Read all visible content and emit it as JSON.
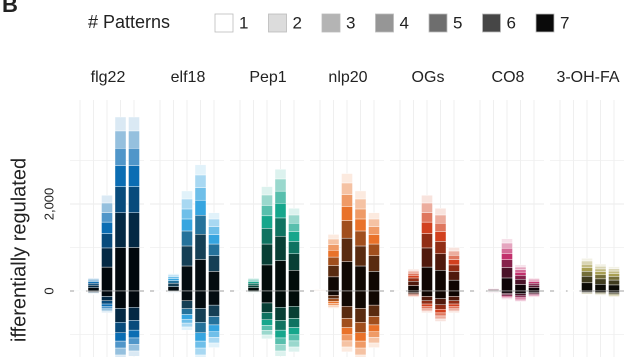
{
  "chart_data": {
    "type": "faceted_stacked_bar",
    "panel_label": "B",
    "ylabel": "ifferentially regulated",
    "legend_title": "# Patterns",
    "legend": {
      "labels": [
        "1",
        "2",
        "3",
        "4",
        "5",
        "6",
        "7"
      ],
      "colors": [
        "#ffffff",
        "#dcdcdc",
        "#b4b4b4",
        "#969696",
        "#6e6e6e",
        "#464646",
        "#0a0a0a"
      ]
    },
    "ylim": [
      -1500,
      4200
    ],
    "yticks": [
      0,
      {
        "value": 2000,
        "label": "2,000"
      }
    ],
    "minor_gridlines": [
      -1000,
      1000,
      3000
    ],
    "facets": [
      {
        "name": "flg22",
        "color": "#0b6db3",
        "bars": [
          {
            "up": [
              2,
              2,
              2,
              2,
              3,
              4,
              5
            ],
            "down": [
              -1,
              -1,
              -1,
              -1,
              -1,
              -2,
              -3
            ]
          },
          {
            "up": [
              24,
              30,
              30,
              36,
              45,
              60,
              75
            ],
            "down": [
              -6,
              -8,
              -8,
              -10,
              -12,
              -16,
              -20
            ]
          },
          {
            "up": [
              176,
              220,
              220,
              264,
              330,
              440,
              550
            ],
            "down": [
              -40,
              -50,
              -50,
              -60,
              -75,
              -100,
              -125
            ]
          },
          {
            "up": [
              320,
              400,
              400,
              480,
              600,
              800,
              1000
            ],
            "down": [
              -128,
              -160,
              -160,
              -192,
              -240,
              -320,
              -400
            ]
          },
          {
            "up": [
              320,
              400,
              400,
              480,
              600,
              800,
              1000
            ],
            "down": [
              -120,
              -150,
              -150,
              -180,
              -225,
              -300,
              -375
            ]
          }
        ]
      },
      {
        "name": "elf18",
        "color": "#36a5e0",
        "bars": [
          {
            "up": [
              2,
              2,
              2,
              2,
              3,
              4,
              5
            ],
            "down": [
              -1,
              -1,
              -1,
              -1,
              -1,
              -2,
              -3
            ]
          },
          {
            "up": [
              32,
              40,
              40,
              48,
              60,
              80,
              100
            ],
            "down": [
              -3,
              -5,
              -5,
              -6,
              -8,
              -10,
              -13
            ]
          },
          {
            "up": [
              184,
              230,
              230,
              276,
              345,
              460,
              575
            ],
            "down": [
              -72,
              -90,
              -90,
              -108,
              -135,
              -180,
              -225
            ]
          },
          {
            "up": [
              232,
              290,
              290,
              348,
              435,
              580,
              725
            ],
            "down": [
              -128,
              -160,
              -160,
              -192,
              -240,
              -320,
              -400
            ]
          },
          {
            "up": [
              144,
              180,
              180,
              216,
              270,
              360,
              450
            ],
            "down": [
              -104,
              -130,
              -130,
              -156,
              -195,
              -260,
              -325
            ]
          }
        ]
      },
      {
        "name": "Pep1",
        "color": "#16a68c",
        "bars": [
          {
            "up": [
              2,
              2,
              2,
              2,
              3,
              4,
              5
            ],
            "down": [
              -1,
              -1,
              -1,
              -1,
              -1,
              -2,
              -3
            ]
          },
          {
            "up": [
              24,
              30,
              30,
              36,
              45,
              60,
              75
            ],
            "down": [
              -5,
              -6,
              -6,
              -7,
              -9,
              -12,
              -15
            ]
          },
          {
            "up": [
              192,
              240,
              240,
              288,
              360,
              480,
              600
            ],
            "down": [
              -88,
              -110,
              -110,
              -132,
              -165,
              -220,
              -275
            ]
          },
          {
            "up": [
              224,
              280,
              280,
              336,
              420,
              560,
              700
            ],
            "down": [
              -120,
              -150,
              -150,
              -180,
              -225,
              -300,
              -375
            ]
          },
          {
            "up": [
              152,
              190,
              190,
              228,
              285,
              380,
              475
            ],
            "down": [
              -112,
              -140,
              -140,
              -168,
              -210,
              -280,
              -350
            ]
          }
        ]
      },
      {
        "name": "nlp20",
        "color": "#e9722a",
        "bars": [
          {
            "up": [
              3,
              4,
              4,
              5,
              6,
              8,
              10
            ],
            "down": [
              -1,
              -1,
              -1,
              -1,
              -1,
              -2,
              -3
            ]
          },
          {
            "up": [
              104,
              130,
              130,
              156,
              195,
              260,
              325
            ],
            "down": [
              -32,
              -40,
              -40,
              -48,
              -60,
              -80,
              -100
            ]
          },
          {
            "up": [
              216,
              270,
              270,
              324,
              405,
              540,
              675
            ],
            "down": [
              -112,
              -140,
              -140,
              -168,
              -210,
              -280,
              -350
            ]
          },
          {
            "up": [
              184,
              230,
              230,
              276,
              345,
              460,
              575
            ],
            "down": [
              -128,
              -160,
              -160,
              -192,
              -240,
              -320,
              -400
            ]
          },
          {
            "up": [
              144,
              180,
              180,
              216,
              270,
              360,
              450
            ],
            "down": [
              -104,
              -130,
              -130,
              -156,
              -195,
              -260,
              -325
            ]
          }
        ]
      },
      {
        "name": "OGs",
        "color": "#d2411f",
        "bars": [
          {
            "up": [
              2,
              2,
              2,
              2,
              3,
              4,
              5
            ],
            "down": [
              -1,
              -1,
              -1,
              -1,
              -1,
              -2,
              -3
            ]
          },
          {
            "up": [
              40,
              50,
              50,
              60,
              75,
              100,
              125
            ],
            "down": [
              -11,
              -15,
              -15,
              -18,
              -23,
              -30,
              -38
            ]
          },
          {
            "up": [
              176,
              220,
              220,
              264,
              330,
              440,
              550
            ],
            "down": [
              -40,
              -50,
              -50,
              -60,
              -75,
              -100,
              -125
            ]
          },
          {
            "up": [
              152,
              190,
              190,
              228,
              285,
              380,
              475
            ],
            "down": [
              -56,
              -70,
              -70,
              -84,
              -105,
              -140,
              -175
            ]
          },
          {
            "up": [
              80,
              100,
              100,
              120,
              150,
              200,
              250
            ],
            "down": [
              -40,
              -50,
              -50,
              -60,
              -75,
              -100,
              -125
            ]
          }
        ]
      },
      {
        "name": "CO8",
        "color": "#c2306c",
        "bars": [
          {
            "up": [
              1,
              1,
              1,
              1,
              1,
              2,
              3
            ],
            "down": [
              -1,
              0,
              0,
              -1,
              -1,
              -1,
              -1
            ]
          },
          {
            "up": [
              6,
              8,
              8,
              10,
              12,
              16,
              20
            ],
            "down": [
              -3,
              -5,
              -5,
              -6,
              -8,
              -10,
              -13
            ]
          },
          {
            "up": [
              96,
              120,
              120,
              144,
              180,
              240,
              300
            ],
            "down": [
              -16,
              -20,
              -20,
              -24,
              -30,
              -40,
              -50
            ]
          },
          {
            "up": [
              48,
              60,
              60,
              72,
              90,
              120,
              150
            ],
            "down": [
              -19,
              -25,
              -25,
              -30,
              -38,
              -50,
              -63
            ]
          },
          {
            "up": [
              24,
              30,
              30,
              36,
              45,
              60,
              75
            ],
            "down": [
              -11,
              -15,
              -15,
              -18,
              -23,
              -30,
              -38
            ]
          }
        ]
      },
      {
        "name": "3-OH-FA",
        "color": "#a89f52",
        "bars": [
          {
            "up": [
              1,
              0,
              0,
              1,
              1,
              1,
              1
            ],
            "down": [
              -1,
              0,
              0,
              -1,
              -1,
              -1,
              -1
            ]
          },
          {
            "up": [
              2,
              2,
              2,
              2,
              3,
              4,
              5
            ],
            "down": [
              -1,
              0,
              0,
              -1,
              -1,
              -1,
              -1
            ]
          },
          {
            "up": [
              59,
              75,
              75,
              90,
              113,
              150,
              188
            ],
            "down": [
              -8,
              -10,
              -10,
              -12,
              -15,
              -20,
              -25
            ]
          },
          {
            "up": [
              50,
              62,
              62,
              74,
              93,
              124,
              155
            ],
            "down": [
              -10,
              -12,
              -12,
              -14,
              -18,
              -24,
              -30
            ]
          },
          {
            "up": [
              45,
              56,
              56,
              67,
              84,
              112,
              140
            ],
            "down": [
              -11,
              -15,
              -15,
              -18,
              -23,
              -30,
              -38
            ]
          }
        ]
      }
    ]
  }
}
